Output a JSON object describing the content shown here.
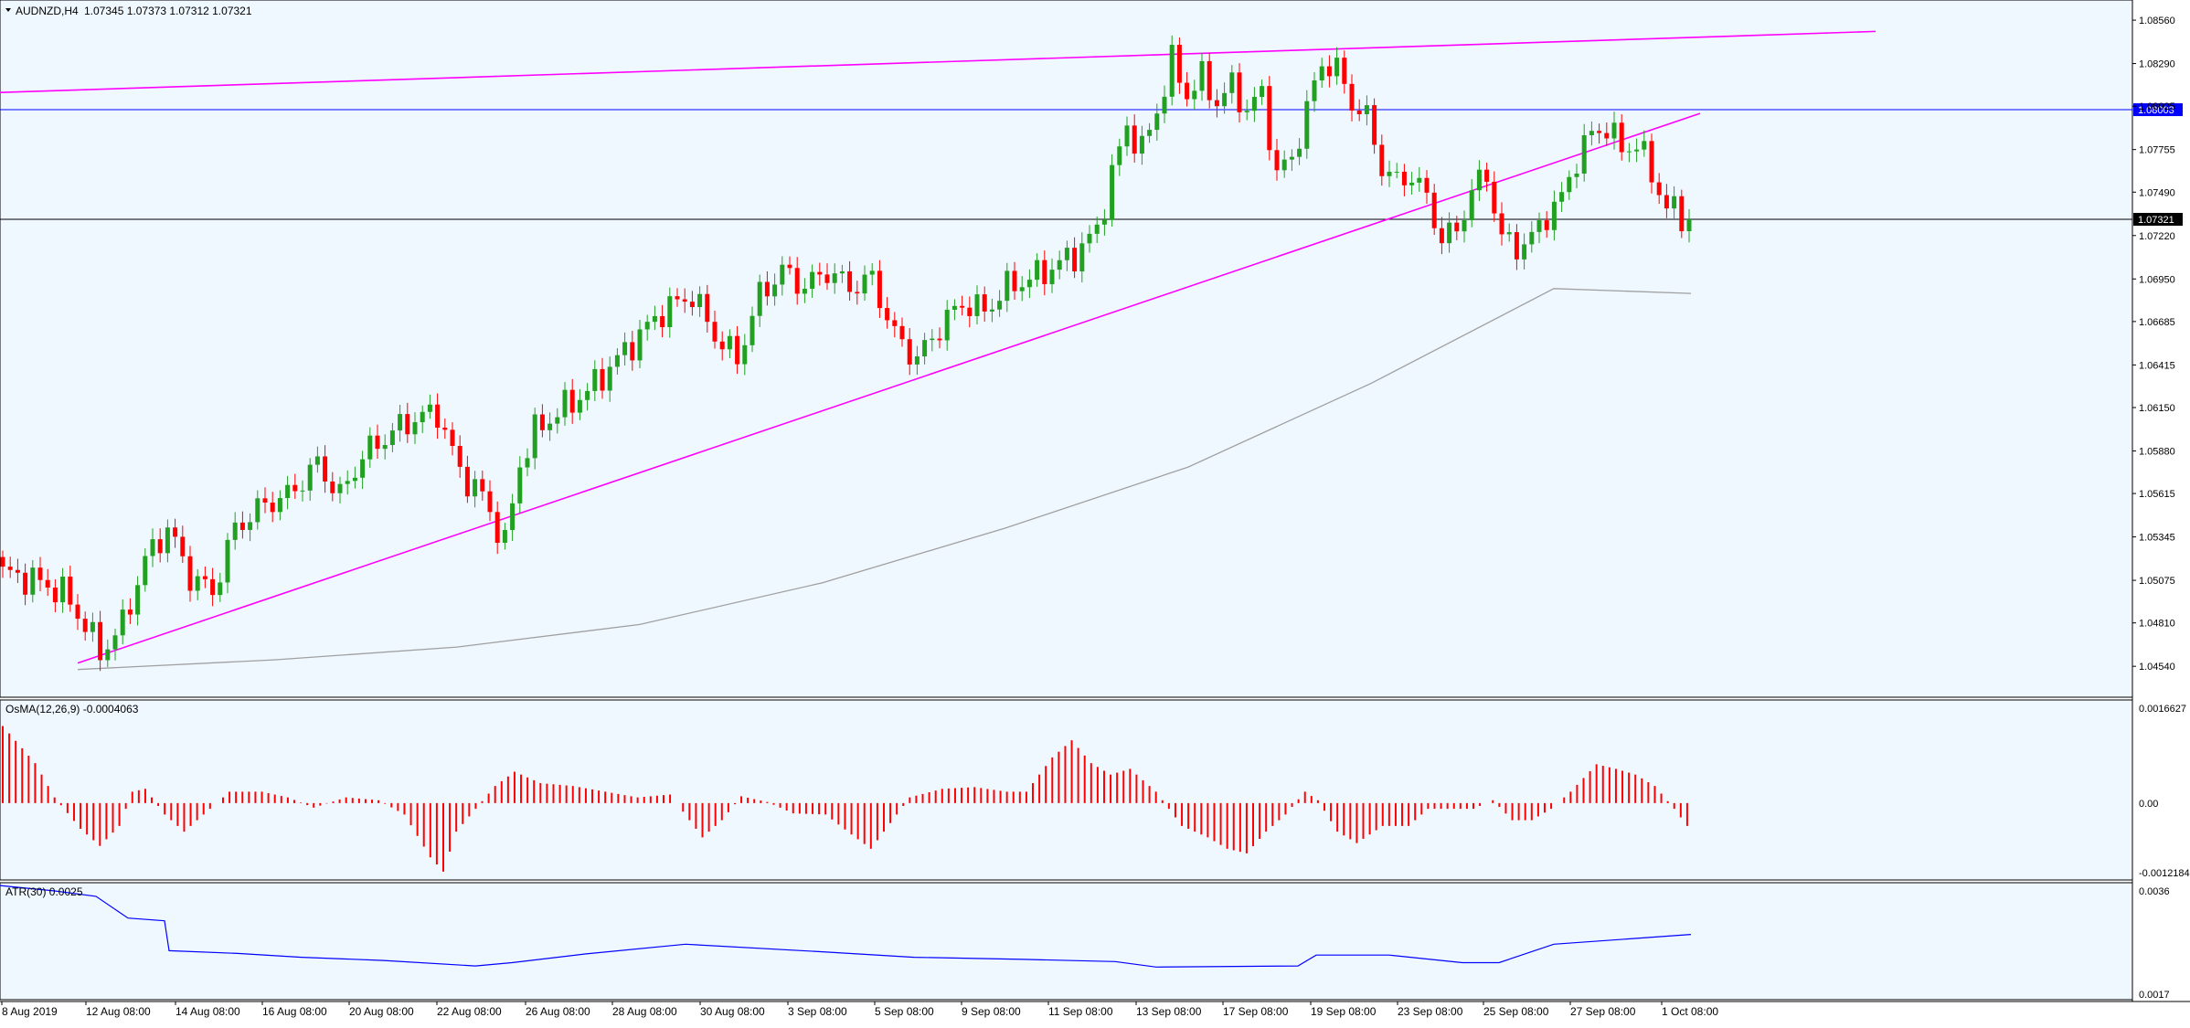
{
  "symbol_label": "AUDNZD,H4",
  "ohlc_label": "1.07345 1.07373 1.07312 1.07321",
  "osma_label": "OsMA(12,26,9) -0.0004063",
  "atr_label": "ATR(30) 0.0025",
  "colors": {
    "background": "#f0f8ff",
    "bull": "#22a022",
    "bear": "#ff0000",
    "trendline": "#ff00ff",
    "ma": "#a0a0a0",
    "hline_blue": "#0000ff",
    "hline_black": "#000000",
    "atr_line": "#0000ff",
    "tag_blue_bg": "#0000ff",
    "tag_black_bg": "#000000"
  },
  "chart_data": [
    {
      "type": "candlestick",
      "title": "AUDNZD,H4",
      "y_ticks": [
        "1.08560",
        "1.08290",
        "1.08025",
        "1.07755",
        "1.07490",
        "1.07220",
        "1.06950",
        "1.06685",
        "1.06415",
        "1.06150",
        "1.05880",
        "1.05615",
        "1.05345",
        "1.05075",
        "1.04810",
        "1.04540"
      ],
      "ylim": [
        1.0445,
        1.0864
      ],
      "price_tags": [
        {
          "value": 1.08003,
          "label": "1.08003",
          "color": "blue"
        },
        {
          "value": 1.07321,
          "label": "1.07321",
          "color": "black"
        }
      ],
      "horizontal_lines": [
        1.08003,
        1.07321
      ],
      "trendlines": [
        {
          "from": [
            0,
            1.0811
          ],
          "to": [
            2052,
            1.0849
          ],
          "label": ""
        },
        {
          "from": [
            85,
            1.0456
          ],
          "to": [
            1860,
            1.0798
          ],
          "label": ""
        }
      ],
      "moving_average_keypoints": [
        [
          85,
          1.0452
        ],
        [
          300,
          1.0458
        ],
        [
          500,
          1.0466
        ],
        [
          700,
          1.048
        ],
        [
          900,
          1.0506
        ],
        [
          1100,
          1.054
        ],
        [
          1300,
          1.0578
        ],
        [
          1500,
          1.063
        ],
        [
          1700,
          1.0689
        ],
        [
          1850,
          1.0686
        ]
      ]
    },
    {
      "type": "histogram",
      "title": "OsMA(12,26,9)",
      "y_ticks": [
        "0.0016627",
        "0.00",
        "-0.0012184"
      ],
      "ylim": [
        -0.0012184,
        0.0016627
      ]
    },
    {
      "type": "line",
      "title": "ATR(30)",
      "y_ticks": [
        "0.0036",
        "0.0017"
      ],
      "ylim": [
        0.0017,
        0.0036
      ]
    }
  ],
  "x_tick_labels": [
    "8 Aug 2019",
    "12 Aug 08:00",
    "14 Aug 08:00",
    "16 Aug 08:00",
    "20 Aug 08:00",
    "22 Aug 08:00",
    "26 Aug 08:00",
    "28 Aug 08:00",
    "30 Aug 08:00",
    "3 Sep 08:00",
    "5 Sep 08:00",
    "9 Sep 08:00",
    "11 Sep 08:00",
    "13 Sep 08:00",
    "17 Sep 08:00",
    "19 Sep 08:00",
    "23 Sep 08:00",
    "25 Sep 08:00",
    "27 Sep 08:00",
    "1 Oct 08:00"
  ]
}
